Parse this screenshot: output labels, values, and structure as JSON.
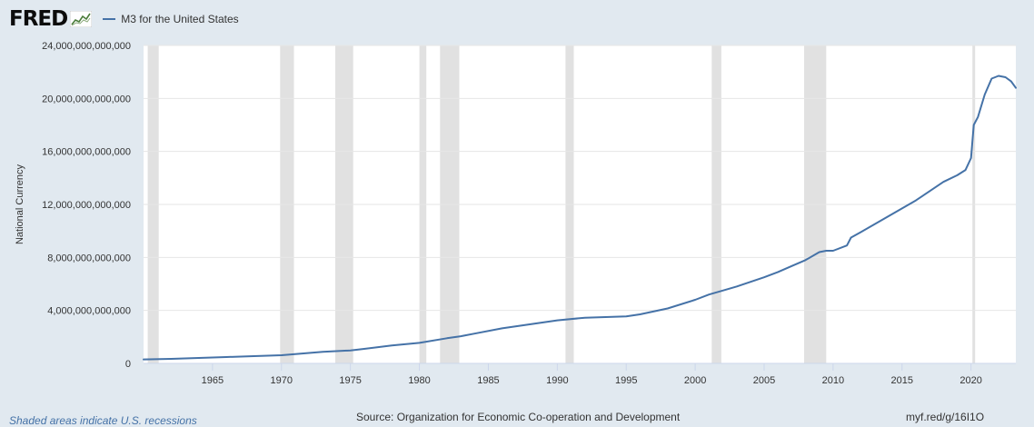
{
  "header": {
    "logo_text": "FRED",
    "logo_icon": "fred-chart-icon",
    "legend_label": "M3 for the United States"
  },
  "colors": {
    "background": "#e1e9f0",
    "plot_background": "#ffffff",
    "series_line": "#4572a7",
    "recession_shade": "#e1e1e1",
    "gridline": "#e6e6e6"
  },
  "chart_data": {
    "type": "line",
    "title": "",
    "xlabel": "",
    "ylabel": "National Currency",
    "xlim": [
      1960.0,
      2023.25
    ],
    "ylim": [
      0,
      24000000000000
    ],
    "x_ticks": [
      1965,
      1970,
      1975,
      1980,
      1985,
      1990,
      1995,
      2000,
      2005,
      2010,
      2015,
      2020
    ],
    "x_tick_labels": [
      "1965",
      "1970",
      "1975",
      "1980",
      "1985",
      "1990",
      "1995",
      "2000",
      "2005",
      "2010",
      "2015",
      "2020"
    ],
    "y_ticks": [
      0,
      4000000000000,
      8000000000000,
      12000000000000,
      16000000000000,
      20000000000000,
      24000000000000
    ],
    "y_tick_labels": [
      "0",
      "4,000,000,000,000",
      "8,000,000,000,000",
      "12,000,000,000,000",
      "16,000,000,000,000",
      "20,000,000,000,000",
      "24,000,000,000,000"
    ],
    "grid": true,
    "recessions": [
      [
        1960.3,
        1961.1
      ],
      [
        1969.9,
        1970.9
      ],
      [
        1973.9,
        1975.2
      ],
      [
        1980.0,
        1980.5
      ],
      [
        1981.5,
        1982.9
      ],
      [
        1990.6,
        1991.2
      ],
      [
        2001.2,
        2001.9
      ],
      [
        2007.9,
        2009.5
      ],
      [
        2020.1,
        2020.3
      ]
    ],
    "series": [
      {
        "name": "M3 for the United States",
        "x": [
          1960.0,
          1962,
          1964,
          1966,
          1968,
          1970,
          1971,
          1973,
          1975,
          1976,
          1978,
          1980,
          1982,
          1983,
          1984,
          1986,
          1988,
          1990,
          1992,
          1995,
          1996,
          1998,
          2000,
          2001,
          2002,
          2003,
          2004,
          2005,
          2006,
          2007,
          2008,
          2009,
          2009.5,
          2010,
          2011,
          2011.3,
          2012,
          2013,
          2014,
          2015,
          2016,
          2017,
          2018,
          2019,
          2019.6,
          2020.0,
          2020.2,
          2020.5,
          2021.0,
          2021.5,
          2022.0,
          2022.5,
          2022.9,
          2023.25
        ],
        "values": [
          300000000000,
          340000000000,
          410000000000,
          480000000000,
          550000000000,
          620000000000,
          700000000000,
          870000000000,
          980000000000,
          1100000000000,
          1350000000000,
          1550000000000,
          1900000000000,
          2050000000000,
          2250000000000,
          2650000000000,
          2950000000000,
          3250000000000,
          3450000000000,
          3550000000000,
          3700000000000,
          4150000000000,
          4800000000000,
          5200000000000,
          5500000000000,
          5800000000000,
          6150000000000,
          6500000000000,
          6900000000000,
          7350000000000,
          7800000000000,
          8400000000000,
          8500000000000,
          8500000000000,
          8900000000000,
          9500000000000,
          9900000000000,
          10500000000000,
          11100000000000,
          11700000000000,
          12300000000000,
          13000000000000,
          13700000000000,
          14200000000000,
          14600000000000,
          15500000000000,
          18000000000000,
          18600000000000,
          20300000000000,
          21500000000000,
          21700000000000,
          21600000000000,
          21300000000000,
          20800000000000
        ]
      }
    ]
  },
  "footer": {
    "recession_note": "Shaded areas indicate U.S. recessions",
    "source": "Source: Organization for Economic Co-operation and Development",
    "short_link": "myf.red/g/16I1O"
  }
}
